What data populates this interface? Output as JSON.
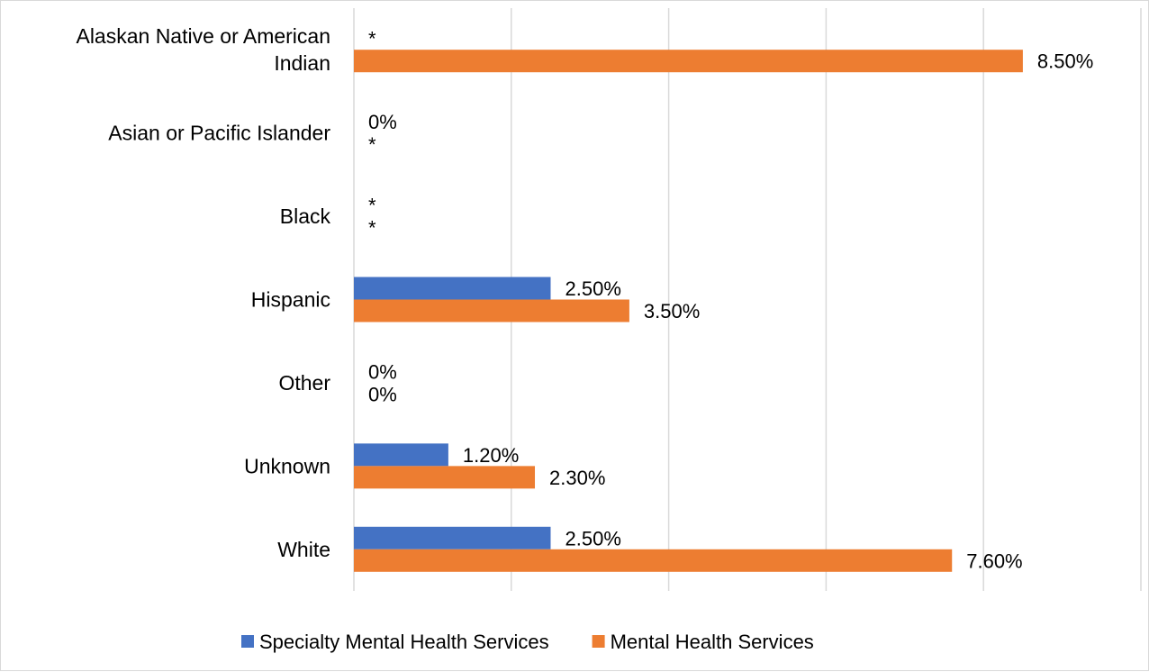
{
  "chart_data": {
    "type": "bar",
    "orientation": "horizontal",
    "categories": [
      [
        "Alaskan Native or American",
        "Indian"
      ],
      [
        "Asian or Pacific Islander"
      ],
      [
        "Black"
      ],
      [
        "Hispanic"
      ],
      [
        "Other"
      ],
      [
        "Unknown"
      ],
      [
        "White"
      ]
    ],
    "series": [
      {
        "name": "Specialty Mental Health Services",
        "color": "#4472c4",
        "values": [
          null,
          0,
          null,
          2.5,
          0,
          1.2,
          2.5
        ],
        "labels": [
          "*",
          "0%",
          "*",
          "2.50%",
          "0%",
          "1.20%",
          "2.50%"
        ]
      },
      {
        "name": "Mental Health Services",
        "color": "#ed7d31",
        "values": [
          8.5,
          null,
          null,
          3.5,
          0,
          2.3,
          7.6
        ],
        "labels": [
          "8.50%",
          "*",
          "*",
          "3.50%",
          "0%",
          "2.30%",
          "7.60%"
        ]
      }
    ],
    "xlim": [
      0,
      10
    ],
    "grid": true,
    "legend_position": "bottom",
    "gridline_color": "#d9d9d9"
  }
}
